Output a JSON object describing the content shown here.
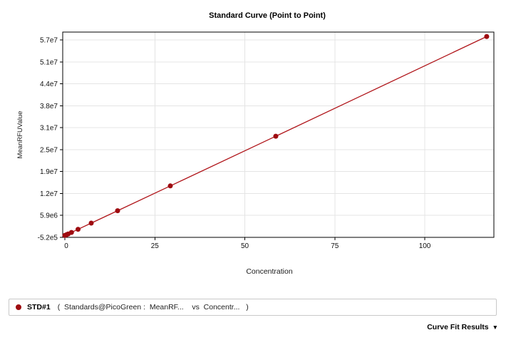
{
  "window": {
    "background": "#ffffff"
  },
  "chart_data": {
    "type": "scatter",
    "title": "Standard Curve (Point to Point)",
    "xlabel": "Concentration",
    "ylabel": "MeanRFUValue",
    "xlim": [
      -0.6,
      119.2
    ],
    "ylim": [
      -520000,
      59400000
    ],
    "grid": true,
    "legend_position": "bottom",
    "x_ticks": {
      "values": [
        0,
        25,
        50,
        75,
        100
      ],
      "labels": [
        "0",
        "25",
        "50",
        "75",
        "100"
      ]
    },
    "y_ticks": {
      "values": [
        -520000,
        5880000,
        12280000,
        18680000,
        25080000,
        31480000,
        37880000,
        44280000,
        50680000,
        57080000
      ],
      "labels": [
        "-5.2e5",
        "5.9e6",
        "1.2e7",
        "1.9e7",
        "2.5e7",
        "3.1e7",
        "3.8e7",
        "4.4e7",
        "5.1e7",
        "5.7e7"
      ]
    },
    "series": [
      {
        "name": "STD#1",
        "x": [
          0,
          0.46,
          0.92,
          1.83,
          3.66,
          7.32,
          14.65,
          29.3,
          58.6,
          117.2
        ],
        "y": [
          50000,
          250000,
          470000,
          920000,
          1830000,
          3640000,
          7260000,
          14500000,
          29000000,
          58100000
        ],
        "marker_color": "#9e0b10",
        "line_color": "#b0151a"
      }
    ],
    "grid_color": "#e4e4e4",
    "axis_color": "#000000"
  },
  "legend": {
    "series_label": "STD#1",
    "series_desc": "(  Standards@PicoGreen :  MeanRF...    vs  Concentr...   )",
    "marker_color": "#9e0b10"
  },
  "footer": {
    "curve_fit_results_label": "Curve Fit Results",
    "dropdown_icon": "▼"
  }
}
